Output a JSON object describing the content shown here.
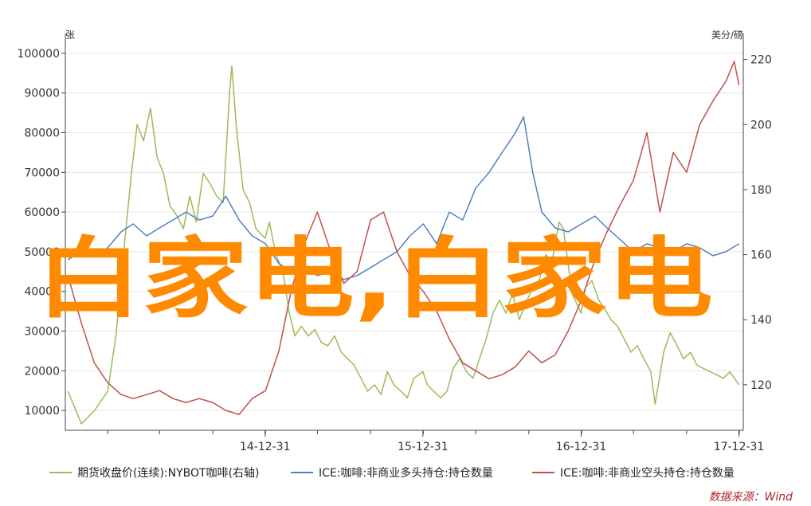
{
  "overlay_text": "白家电,白家电",
  "source_label": "数据来源：Wind",
  "chart_data": {
    "type": "line",
    "left_axis": {
      "unit_label": "张",
      "ticks": [
        10000,
        20000,
        30000,
        40000,
        50000,
        60000,
        70000,
        80000,
        90000,
        100000
      ],
      "range": [
        5000,
        105000
      ]
    },
    "right_axis": {
      "unit_label": "美分/磅",
      "ticks": [
        120,
        140,
        160,
        180,
        200,
        220
      ],
      "range": [
        106,
        228
      ]
    },
    "x_axis": {
      "range": [
        "2013-09-25",
        "2018-01-10"
      ],
      "tick_labels": [
        "14-12-31",
        "15-12-31",
        "16-12-31",
        "17-12-31"
      ],
      "tick_dates": [
        "2014-12-31",
        "2015-12-31",
        "2016-12-31",
        "2017-12-31"
      ]
    },
    "grid": "horizontal",
    "legend_position": "bottom",
    "series": [
      {
        "name": "期货收盘价(连续):NYBOT咖啡(右轴)",
        "axis": "right",
        "color": "#9bbb59",
        "points": [
          [
            "2013-10-01",
            118
          ],
          [
            "2013-11-01",
            108
          ],
          [
            "2013-12-01",
            112
          ],
          [
            "2014-01-01",
            118
          ],
          [
            "2014-01-20",
            135
          ],
          [
            "2014-02-10",
            165
          ],
          [
            "2014-02-25",
            185
          ],
          [
            "2014-03-10",
            200
          ],
          [
            "2014-03-25",
            195
          ],
          [
            "2014-04-10",
            205
          ],
          [
            "2014-04-25",
            190
          ],
          [
            "2014-05-10",
            185
          ],
          [
            "2014-05-25",
            175
          ],
          [
            "2014-06-10",
            172
          ],
          [
            "2014-06-25",
            168
          ],
          [
            "2014-07-10",
            178
          ],
          [
            "2014-07-25",
            170
          ],
          [
            "2014-08-10",
            185
          ],
          [
            "2014-08-25",
            182
          ],
          [
            "2014-09-10",
            178
          ],
          [
            "2014-09-25",
            176
          ],
          [
            "2014-10-10",
            210
          ],
          [
            "2014-10-15",
            218
          ],
          [
            "2014-10-25",
            200
          ],
          [
            "2014-11-10",
            180
          ],
          [
            "2014-11-25",
            176
          ],
          [
            "2014-12-10",
            168
          ],
          [
            "2014-12-31",
            165
          ],
          [
            "2015-01-10",
            170
          ],
          [
            "2015-01-25",
            160
          ],
          [
            "2015-02-10",
            155
          ],
          [
            "2015-02-25",
            142
          ],
          [
            "2015-03-10",
            135
          ],
          [
            "2015-03-25",
            138
          ],
          [
            "2015-04-10",
            135
          ],
          [
            "2015-04-25",
            137
          ],
          [
            "2015-05-10",
            133
          ],
          [
            "2015-05-25",
            132
          ],
          [
            "2015-06-10",
            135
          ],
          [
            "2015-06-25",
            130
          ],
          [
            "2015-07-10",
            128
          ],
          [
            "2015-07-25",
            126
          ],
          [
            "2015-08-10",
            122
          ],
          [
            "2015-08-25",
            118
          ],
          [
            "2015-09-10",
            120
          ],
          [
            "2015-09-25",
            117
          ],
          [
            "2015-10-10",
            124
          ],
          [
            "2015-10-25",
            120
          ],
          [
            "2015-11-10",
            118
          ],
          [
            "2015-11-25",
            116
          ],
          [
            "2015-12-10",
            122
          ],
          [
            "2015-12-31",
            124
          ],
          [
            "2016-01-10",
            120
          ],
          [
            "2016-01-25",
            118
          ],
          [
            "2016-02-10",
            116
          ],
          [
            "2016-02-25",
            118
          ],
          [
            "2016-03-10",
            125
          ],
          [
            "2016-03-25",
            128
          ],
          [
            "2016-04-10",
            124
          ],
          [
            "2016-04-25",
            122
          ],
          [
            "2016-05-10",
            128
          ],
          [
            "2016-05-25",
            134
          ],
          [
            "2016-06-10",
            142
          ],
          [
            "2016-06-25",
            146
          ],
          [
            "2016-07-10",
            142
          ],
          [
            "2016-07-25",
            148
          ],
          [
            "2016-08-10",
            140
          ],
          [
            "2016-08-25",
            145
          ],
          [
            "2016-09-10",
            150
          ],
          [
            "2016-09-25",
            152
          ],
          [
            "2016-10-10",
            160
          ],
          [
            "2016-10-25",
            158
          ],
          [
            "2016-11-10",
            170
          ],
          [
            "2016-11-20",
            168
          ],
          [
            "2016-12-10",
            148
          ],
          [
            "2016-12-31",
            142
          ],
          [
            "2017-01-10",
            150
          ],
          [
            "2017-01-25",
            152
          ],
          [
            "2017-02-10",
            146
          ],
          [
            "2017-02-25",
            143
          ],
          [
            "2017-03-10",
            140
          ],
          [
            "2017-03-25",
            138
          ],
          [
            "2017-04-10",
            134
          ],
          [
            "2017-04-25",
            130
          ],
          [
            "2017-05-10",
            132
          ],
          [
            "2017-05-25",
            128
          ],
          [
            "2017-06-10",
            124
          ],
          [
            "2017-06-20",
            114
          ],
          [
            "2017-07-10",
            130
          ],
          [
            "2017-07-25",
            136
          ],
          [
            "2017-08-10",
            132
          ],
          [
            "2017-08-25",
            128
          ],
          [
            "2017-09-10",
            130
          ],
          [
            "2017-09-25",
            126
          ],
          [
            "2017-10-10",
            125
          ],
          [
            "2017-10-25",
            124
          ],
          [
            "2017-11-10",
            123
          ],
          [
            "2017-11-25",
            122
          ],
          [
            "2017-12-10",
            124
          ],
          [
            "2017-12-31",
            120
          ]
        ]
      },
      {
        "name": "ICE:咖啡:非商业多头持仓:持仓数量",
        "axis": "left",
        "color": "#4f81bd",
        "points": [
          [
            "2013-10-01",
            48000
          ],
          [
            "2013-11-01",
            50000
          ],
          [
            "2013-12-01",
            49000
          ],
          [
            "2014-01-01",
            51000
          ],
          [
            "2014-02-01",
            55000
          ],
          [
            "2014-03-01",
            57000
          ],
          [
            "2014-04-01",
            54000
          ],
          [
            "2014-05-01",
            56000
          ],
          [
            "2014-06-01",
            58000
          ],
          [
            "2014-07-01",
            60000
          ],
          [
            "2014-08-01",
            58000
          ],
          [
            "2014-09-01",
            59000
          ],
          [
            "2014-10-01",
            64000
          ],
          [
            "2014-11-01",
            58000
          ],
          [
            "2014-12-01",
            54000
          ],
          [
            "2015-01-01",
            52000
          ],
          [
            "2015-02-01",
            47000
          ],
          [
            "2015-03-01",
            45000
          ],
          [
            "2015-04-01",
            46000
          ],
          [
            "2015-05-01",
            44000
          ],
          [
            "2015-06-01",
            45000
          ],
          [
            "2015-07-01",
            43000
          ],
          [
            "2015-08-01",
            44000
          ],
          [
            "2015-09-01",
            46000
          ],
          [
            "2015-10-01",
            48000
          ],
          [
            "2015-11-01",
            50000
          ],
          [
            "2015-12-01",
            54000
          ],
          [
            "2016-01-01",
            57000
          ],
          [
            "2016-02-01",
            52000
          ],
          [
            "2016-03-01",
            60000
          ],
          [
            "2016-04-01",
            58000
          ],
          [
            "2016-05-01",
            66000
          ],
          [
            "2016-06-01",
            70000
          ],
          [
            "2016-07-01",
            75000
          ],
          [
            "2016-08-01",
            80000
          ],
          [
            "2016-08-20",
            84000
          ],
          [
            "2016-09-10",
            70000
          ],
          [
            "2016-10-01",
            60000
          ],
          [
            "2016-11-01",
            56000
          ],
          [
            "2016-12-01",
            55000
          ],
          [
            "2017-01-01",
            57000
          ],
          [
            "2017-02-01",
            59000
          ],
          [
            "2017-03-01",
            56000
          ],
          [
            "2017-04-01",
            53000
          ],
          [
            "2017-05-01",
            50000
          ],
          [
            "2017-06-01",
            52000
          ],
          [
            "2017-07-01",
            51000
          ],
          [
            "2017-08-01",
            50000
          ],
          [
            "2017-09-01",
            52000
          ],
          [
            "2017-10-01",
            51000
          ],
          [
            "2017-11-01",
            49000
          ],
          [
            "2017-12-01",
            50000
          ],
          [
            "2017-12-31",
            52000
          ]
        ]
      },
      {
        "name": "ICE:咖啡:非商业空头持仓:持仓数量",
        "axis": "left",
        "color": "#c0504d",
        "points": [
          [
            "2013-10-01",
            44000
          ],
          [
            "2013-11-01",
            32000
          ],
          [
            "2013-12-01",
            22000
          ],
          [
            "2014-01-01",
            17000
          ],
          [
            "2014-02-01",
            14000
          ],
          [
            "2014-03-01",
            13000
          ],
          [
            "2014-04-01",
            14000
          ],
          [
            "2014-05-01",
            15000
          ],
          [
            "2014-06-01",
            13000
          ],
          [
            "2014-07-01",
            12000
          ],
          [
            "2014-08-01",
            13000
          ],
          [
            "2014-09-01",
            12000
          ],
          [
            "2014-10-01",
            10000
          ],
          [
            "2014-11-01",
            9000
          ],
          [
            "2014-12-01",
            13000
          ],
          [
            "2015-01-01",
            15000
          ],
          [
            "2015-02-01",
            25000
          ],
          [
            "2015-03-01",
            40000
          ],
          [
            "2015-04-01",
            52000
          ],
          [
            "2015-05-01",
            60000
          ],
          [
            "2015-06-01",
            50000
          ],
          [
            "2015-07-01",
            42000
          ],
          [
            "2015-08-01",
            45000
          ],
          [
            "2015-09-01",
            58000
          ],
          [
            "2015-10-01",
            60000
          ],
          [
            "2015-11-01",
            50000
          ],
          [
            "2015-12-01",
            44000
          ],
          [
            "2016-01-01",
            40000
          ],
          [
            "2016-02-01",
            35000
          ],
          [
            "2016-03-01",
            28000
          ],
          [
            "2016-04-01",
            22000
          ],
          [
            "2016-05-01",
            20000
          ],
          [
            "2016-06-01",
            18000
          ],
          [
            "2016-07-01",
            19000
          ],
          [
            "2016-08-01",
            21000
          ],
          [
            "2016-09-01",
            25000
          ],
          [
            "2016-10-01",
            22000
          ],
          [
            "2016-11-01",
            24000
          ],
          [
            "2016-12-01",
            30000
          ],
          [
            "2017-01-01",
            38000
          ],
          [
            "2017-02-01",
            48000
          ],
          [
            "2017-03-01",
            55000
          ],
          [
            "2017-04-01",
            62000
          ],
          [
            "2017-05-01",
            68000
          ],
          [
            "2017-06-01",
            80000
          ],
          [
            "2017-07-01",
            60000
          ],
          [
            "2017-08-01",
            75000
          ],
          [
            "2017-09-01",
            70000
          ],
          [
            "2017-10-01",
            82000
          ],
          [
            "2017-11-01",
            88000
          ],
          [
            "2017-12-01",
            93000
          ],
          [
            "2017-12-20",
            98000
          ],
          [
            "2017-12-31",
            92000
          ]
        ]
      }
    ]
  }
}
